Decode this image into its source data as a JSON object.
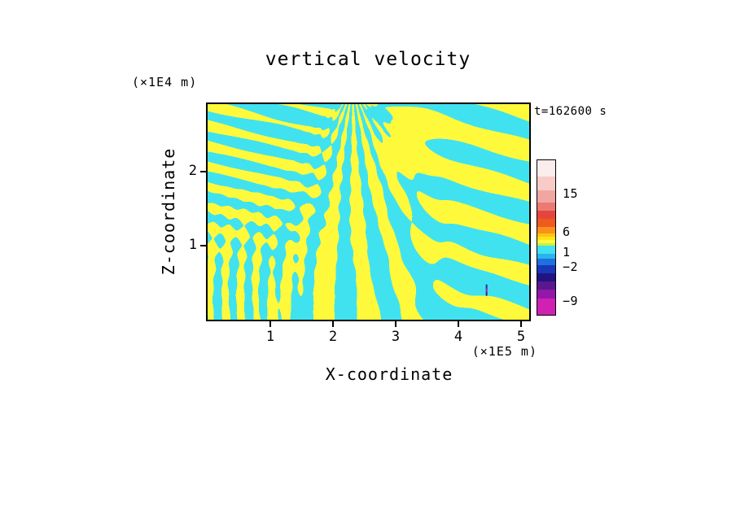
{
  "chart": {
    "title": "vertical velocity",
    "timestamp": "t=162600 s"
  },
  "axes": {
    "x": {
      "label": "X-coordinate",
      "unit_label": "(×1E5 m)",
      "min": 0,
      "max": 5.13,
      "ticks": [
        1,
        2,
        3,
        4,
        5
      ]
    },
    "z": {
      "label": "Z-coordinate",
      "unit_label": "(×1E4 m)",
      "min": 0,
      "max": 2.92,
      "ticks": [
        1,
        2
      ]
    }
  },
  "chart_data": {
    "type": "heatmap",
    "title": "vertical velocity",
    "xlabel": "X-coordinate (×1E5 m)",
    "ylabel": "Z-coordinate (×1E4 m)",
    "time_label": "t=162600 s",
    "time_s": 162600,
    "x_range": [
      0,
      5.13
    ],
    "z_range": [
      0,
      2.92
    ],
    "x_ticks": [
      1,
      2,
      3,
      4,
      5
    ],
    "z_ticks": [
      1,
      2
    ],
    "field": "vertical velocity, filled contours",
    "contour_level_labels": [
      15,
      6,
      1,
      -2,
      -9
    ],
    "fill_colors": {
      "positive_band": "#FFF93C",
      "negative_band": "#41E2EF"
    },
    "pattern": "fan of wave phase lines radiating downward from x≈2.3E5 m at top of domain; diagonal cyan/yellow bands in upper left and right; thin vertical striations in lower left; small deep-negative (dark blue/magenta) spot near x≈4.45E5 m, z≈0.4E4 m",
    "anomaly": {
      "x_1e5m": 4.45,
      "z_1e4m": 0.4
    },
    "legend_position": "right",
    "grid": false
  },
  "colorbar": {
    "segments": [
      {
        "h": 20,
        "color": "#FBEDEB"
      },
      {
        "h": 17,
        "color": "#F7CBC8"
      },
      {
        "h": 15,
        "color": "#F2A6A2"
      },
      {
        "h": 10,
        "color": "#EC7A74"
      },
      {
        "h": 10,
        "color": "#E6453E"
      },
      {
        "h": 10,
        "color": "#EF5A1F"
      },
      {
        "h": 8,
        "color": "#F8921C"
      },
      {
        "h": 4,
        "color": "#FFC414"
      },
      {
        "h": 4,
        "color": "#FFE414"
      },
      {
        "h": 4,
        "color": "#FFF93C"
      },
      {
        "h": 3,
        "color": "#C9F046"
      },
      {
        "h": 10,
        "color": "#41E2EF"
      },
      {
        "h": 6,
        "color": "#29B4F0"
      },
      {
        "h": 8,
        "color": "#2070E0"
      },
      {
        "h": 10,
        "color": "#1838B8"
      },
      {
        "h": 10,
        "color": "#221480"
      },
      {
        "h": 10,
        "color": "#5A1890"
      },
      {
        "h": 11,
        "color": "#9318A8"
      },
      {
        "h": 20,
        "color": "#D021B2"
      }
    ],
    "labels": [
      {
        "text": "15",
        "y": 42
      },
      {
        "text": "6",
        "y": 89
      },
      {
        "text": "1",
        "y": 114
      },
      {
        "text": "−2",
        "y": 132
      },
      {
        "text": "−9",
        "y": 174
      }
    ]
  }
}
